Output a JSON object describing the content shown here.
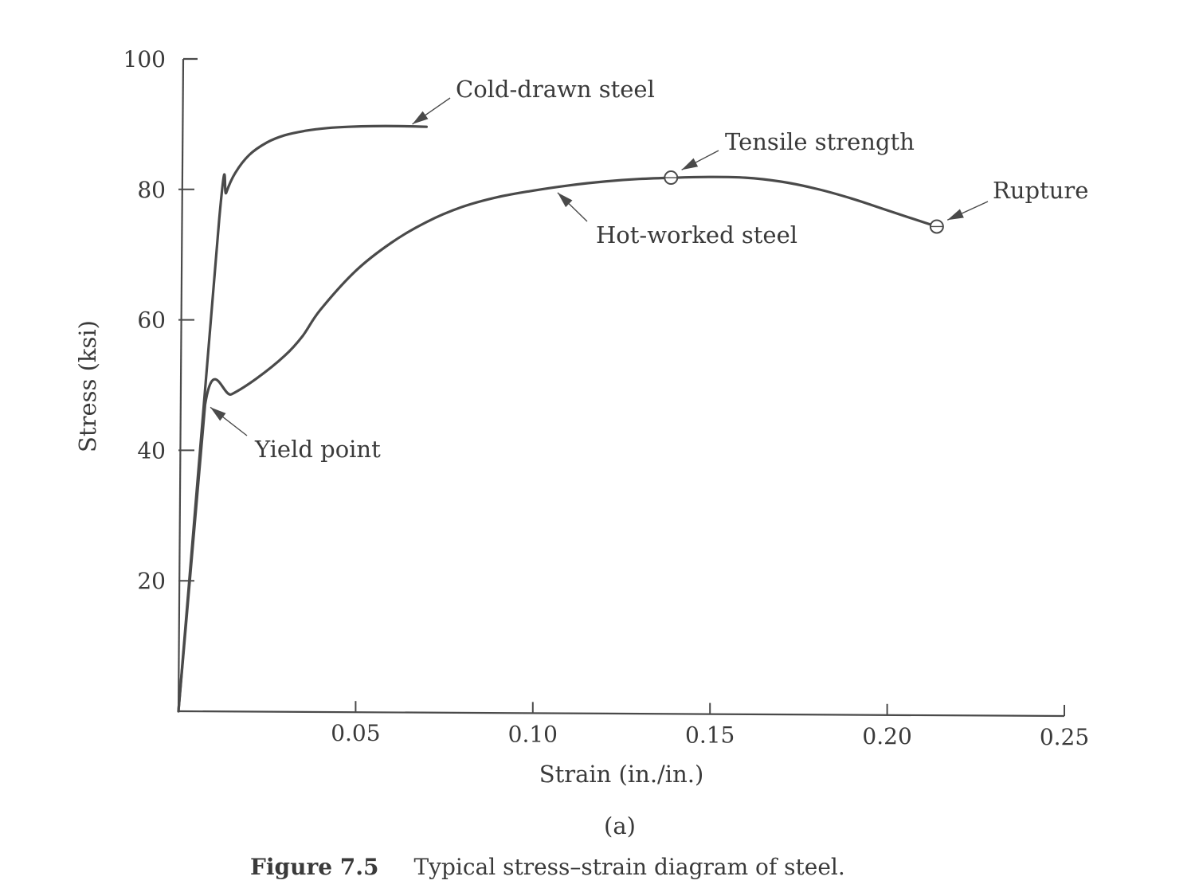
{
  "chart_data": {
    "type": "line",
    "xlabel": "Strain (in./in.)",
    "ylabel": "Stress (ksi)",
    "xlim": [
      0,
      0.25
    ],
    "ylim": [
      0,
      100
    ],
    "x_ticks": [
      {
        "value": 0.05,
        "label": "0.05"
      },
      {
        "value": 0.1,
        "label": "0.10"
      },
      {
        "value": 0.15,
        "label": "0.15"
      },
      {
        "value": 0.2,
        "label": "0.20"
      },
      {
        "value": 0.25,
        "label": "0.25"
      }
    ],
    "y_ticks": [
      {
        "value": 20,
        "label": "20"
      },
      {
        "value": 40,
        "label": "40"
      },
      {
        "value": 60,
        "label": "60"
      },
      {
        "value": 80,
        "label": "80"
      },
      {
        "value": 100,
        "label": "100"
      }
    ],
    "grid": false,
    "series": [
      {
        "name": "Cold-drawn steel",
        "x": [
          0,
          0.0115,
          0.0135,
          0.016,
          0.02,
          0.025,
          0.03,
          0.036,
          0.042,
          0.048,
          0.055,
          0.062,
          0.07
        ],
        "y": [
          0,
          75.5,
          79.5,
          82.5,
          85.3,
          87.2,
          88.3,
          89.0,
          89.4,
          89.6,
          89.7,
          89.7,
          89.6
        ]
      },
      {
        "name": "Hot-worked steel",
        "x": [
          0,
          0.0075,
          0.015,
          0.022,
          0.03,
          0.035,
          0.04,
          0.05,
          0.06,
          0.07,
          0.08,
          0.09,
          0.1,
          0.11,
          0.12,
          0.13,
          0.14,
          0.15,
          0.16,
          0.17,
          0.18,
          0.19,
          0.2,
          0.214
        ],
        "y": [
          0,
          47.0,
          48.6,
          51.0,
          54.5,
          57.5,
          61.5,
          67.5,
          71.8,
          75.0,
          77.3,
          78.8,
          79.8,
          80.6,
          81.2,
          81.6,
          81.8,
          81.9,
          81.8,
          81.2,
          80.1,
          78.6,
          76.8,
          74.3
        ]
      }
    ],
    "markers": [
      {
        "name": "Tensile strength",
        "x": 0.139,
        "y": 81.8
      },
      {
        "name": "Rupture",
        "x": 0.214,
        "y": 74.3
      }
    ],
    "annotations": [
      {
        "text": "Cold-drawn steel",
        "target_x": 0.066,
        "target_y": 90.0
      },
      {
        "text": "Tensile strength",
        "target_x": 0.142,
        "target_y": 83.0
      },
      {
        "text": "Rupture",
        "target_x": 0.217,
        "target_y": 75.3
      },
      {
        "text": "Hot-worked steel",
        "target_x": 0.107,
        "target_y": 79.5
      },
      {
        "text": "Yield point",
        "target_x": 0.009,
        "target_y": 46.6
      }
    ],
    "subtitle": "(a)"
  },
  "caption": {
    "number": "Figure 7.5",
    "text": "Typical stress–strain diagram of steel."
  }
}
